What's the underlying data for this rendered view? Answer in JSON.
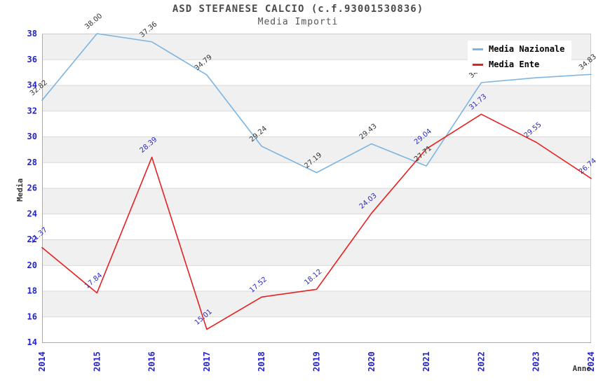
{
  "chart_data": {
    "type": "line",
    "title": "ASD STEFANESE CALCIO (c.f.93001530836)",
    "subtitle": "Media Importi",
    "xlabel": "Anno",
    "ylabel": "Media",
    "categories": [
      "2014",
      "2015",
      "2016",
      "2017",
      "2018",
      "2019",
      "2020",
      "2021",
      "2022",
      "2023",
      "2024"
    ],
    "series": [
      {
        "name": "Media Nazionale",
        "color": "#7cb4e2",
        "label_color": "#333333",
        "values": [
          32.82,
          38.0,
          37.36,
          34.79,
          29.24,
          27.19,
          29.43,
          27.71,
          34.19,
          34.57,
          34.83
        ]
      },
      {
        "name": "Media Ente",
        "color": "#e62020",
        "label_color": "#2a2ac0",
        "values": [
          21.37,
          17.84,
          28.39,
          15.01,
          17.52,
          18.12,
          24.03,
          29.04,
          31.73,
          29.55,
          26.74
        ]
      }
    ],
    "ylim": [
      14,
      38
    ],
    "ytick_step": 2,
    "yticks": [
      14,
      16,
      18,
      20,
      22,
      24,
      26,
      28,
      30,
      32,
      34,
      36,
      38
    ],
    "grid": true,
    "legend_position": "top-right",
    "band_fill": "alternating-horizontal"
  },
  "colors": {
    "axis_tick_label": "#2222cc",
    "axis_title": "#333333",
    "band_gray": "#f0f0f0",
    "grid_line": "#d9d9d9",
    "plot_border": "#aaaaaa",
    "plot_border_light": "#cccccc",
    "background": "#ffffff"
  }
}
